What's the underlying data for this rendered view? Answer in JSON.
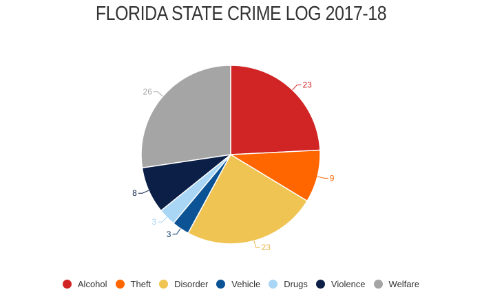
{
  "chart_data": {
    "type": "pie",
    "title": "FLORIDA STATE CRIME LOG 2017-18",
    "categories": [
      "Alcohol",
      "Theft",
      "Disorder",
      "Vehicle",
      "Drugs",
      "Violence",
      "Welfare"
    ],
    "values": [
      23,
      9,
      23,
      3,
      3,
      8,
      26
    ],
    "colors": [
      "#d12424",
      "#ff6600",
      "#f0c452",
      "#0b5394",
      "#a9d6f5",
      "#0b1f47",
      "#a5a5a5"
    ],
    "label_colors": [
      "#d12424",
      "#ff6600",
      "#e8b64c",
      "#0b3d6e",
      "#a9d6f5",
      "#0b1f47",
      "#a5a5a5"
    ],
    "start_angle_deg": 0,
    "direction": "clockwise",
    "legend_position": "bottom"
  },
  "legend": [
    {
      "label": "Alcohol",
      "color": "#d12424"
    },
    {
      "label": "Theft",
      "color": "#ff6600"
    },
    {
      "label": "Disorder",
      "color": "#f0c452"
    },
    {
      "label": "Vehicle",
      "color": "#0b5394"
    },
    {
      "label": "Drugs",
      "color": "#a9d6f5"
    },
    {
      "label": "Violence",
      "color": "#0b1f47"
    },
    {
      "label": "Welfare",
      "color": "#a5a5a5"
    }
  ]
}
